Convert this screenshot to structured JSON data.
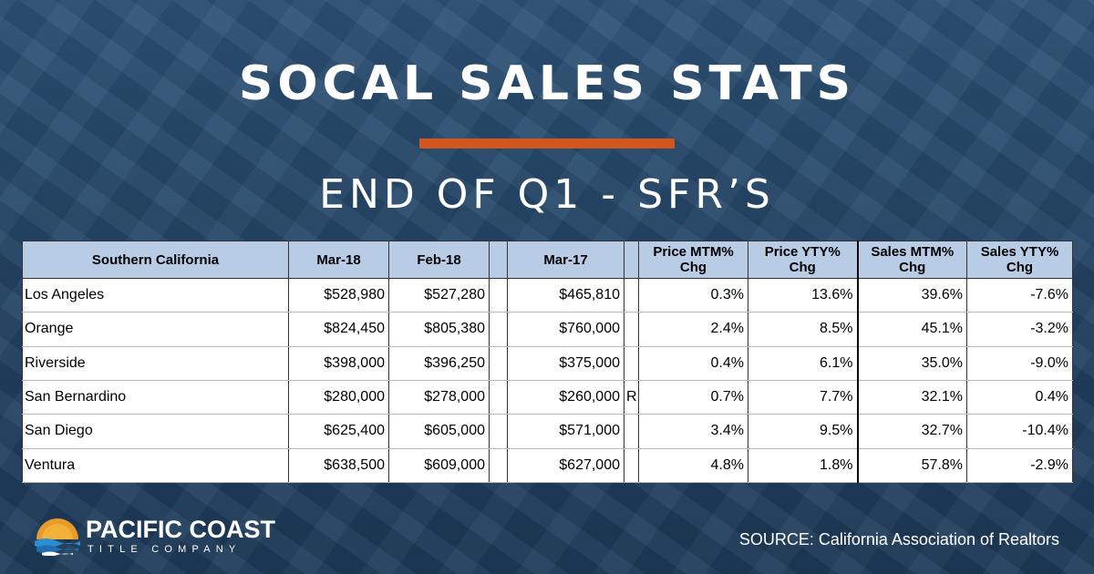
{
  "header": {
    "title": "SOCAL SALES STATS",
    "subtitle": "END OF Q1 - SFR’S"
  },
  "colors": {
    "accent": "#d2571e",
    "header_fill": "#b9cce6",
    "background": "#27496b"
  },
  "table": {
    "headers": [
      "Southern California",
      "Mar-18",
      "Feb-18",
      "",
      "Mar-17",
      "",
      "Price MTM% Chg",
      "Price YTY% Chg",
      "Sales MTM% Chg",
      "Sales YTY% Chg"
    ],
    "rows": [
      {
        "region": "Los Angeles",
        "mar18": "$528,980",
        "feb18": "$527,280",
        "mar17": "$465,810",
        "flag": "",
        "price_mtm": "0.3%",
        "price_yty": "13.6%",
        "sales_mtm": "39.6%",
        "sales_yty": "-7.6%"
      },
      {
        "region": "Orange",
        "mar18": "$824,450",
        "feb18": "$805,380",
        "mar17": "$760,000",
        "flag": "",
        "price_mtm": "2.4%",
        "price_yty": "8.5%",
        "sales_mtm": "45.1%",
        "sales_yty": "-3.2%"
      },
      {
        "region": "Riverside",
        "mar18": "$398,000",
        "feb18": "$396,250",
        "mar17": "$375,000",
        "flag": "",
        "price_mtm": "0.4%",
        "price_yty": "6.1%",
        "sales_mtm": "35.0%",
        "sales_yty": "-9.0%"
      },
      {
        "region": "San Bernardino",
        "mar18": "$280,000",
        "feb18": "$278,000",
        "mar17": "$260,000",
        "flag": "R",
        "price_mtm": "0.7%",
        "price_yty": "7.7%",
        "sales_mtm": "32.1%",
        "sales_yty": "0.4%"
      },
      {
        "region": "San Diego",
        "mar18": "$625,400",
        "feb18": "$605,000",
        "mar17": "$571,000",
        "flag": "",
        "price_mtm": "3.4%",
        "price_yty": "9.5%",
        "sales_mtm": "32.7%",
        "sales_yty": "-10.4%"
      },
      {
        "region": "Ventura",
        "mar18": "$638,500",
        "feb18": "$609,000",
        "mar17": "$627,000",
        "flag": "",
        "price_mtm": "4.8%",
        "price_yty": "1.8%",
        "sales_mtm": "57.8%",
        "sales_yty": "-2.9%"
      }
    ]
  },
  "logo": {
    "name": "PACIFIC COAST",
    "tagline": "TITLE COMPANY",
    "icon": "sunset-waves-icon"
  },
  "source": "SOURCE: California Association of Realtors"
}
